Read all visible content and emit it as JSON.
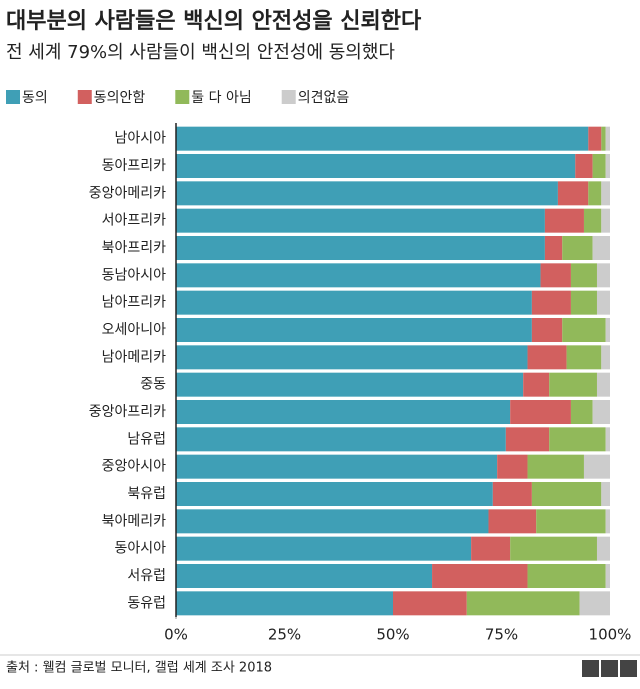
{
  "chart_data": {
    "type": "stacked-bar-horizontal",
    "title": "대부분의 사람들은 백신의 안전성을 신뢰한다",
    "subtitle": "전 세계 79%의 사람들이 백신의 안전성에 동의했다",
    "categories": [
      "남아시아",
      "동아프리카",
      "중앙아메리카",
      "서아프리카",
      "북아프리카",
      "동남아시아",
      "남아프리카",
      "오세아니아",
      "남아메리카",
      "중동",
      "중앙아프리카",
      "남유럽",
      "중앙아시아",
      "북유럽",
      "북아메리카",
      "동아시아",
      "서유럽",
      "동유럽"
    ],
    "series": [
      {
        "name": "동의",
        "color": "#3f9fb6",
        "values": [
          95,
          92,
          88,
          85,
          85,
          84,
          82,
          82,
          81,
          80,
          77,
          76,
          74,
          73,
          72,
          68,
          59,
          50
        ]
      },
      {
        "name": "동의안함",
        "color": "#d2605f",
        "values": [
          3,
          4,
          7,
          9,
          4,
          7,
          9,
          7,
          9,
          6,
          14,
          10,
          7,
          9,
          11,
          9,
          22,
          17
        ]
      },
      {
        "name": "둘 다 아님",
        "color": "#91b95a",
        "values": [
          1,
          3,
          3,
          4,
          7,
          6,
          6,
          10,
          8,
          11,
          5,
          13,
          13,
          16,
          16,
          20,
          18,
          26
        ]
      },
      {
        "name": "의견없음",
        "color": "#cccccc",
        "values": [
          1,
          1,
          2,
          2,
          4,
          3,
          3,
          1,
          2,
          3,
          4,
          1,
          6,
          2,
          1,
          3,
          1,
          7
        ]
      }
    ],
    "xlim": [
      0,
      100
    ],
    "xticks": [
      {
        "value": 0,
        "label": "0%"
      },
      {
        "value": 25,
        "label": "25%"
      },
      {
        "value": 50,
        "label": "50%"
      },
      {
        "value": 75,
        "label": "75%"
      },
      {
        "value": 100,
        "label": "100%"
      }
    ],
    "source": "출처 : 웰컴 글로벌 모니터, 갤럽 세계 조사 2018",
    "logo": "BBC"
  }
}
